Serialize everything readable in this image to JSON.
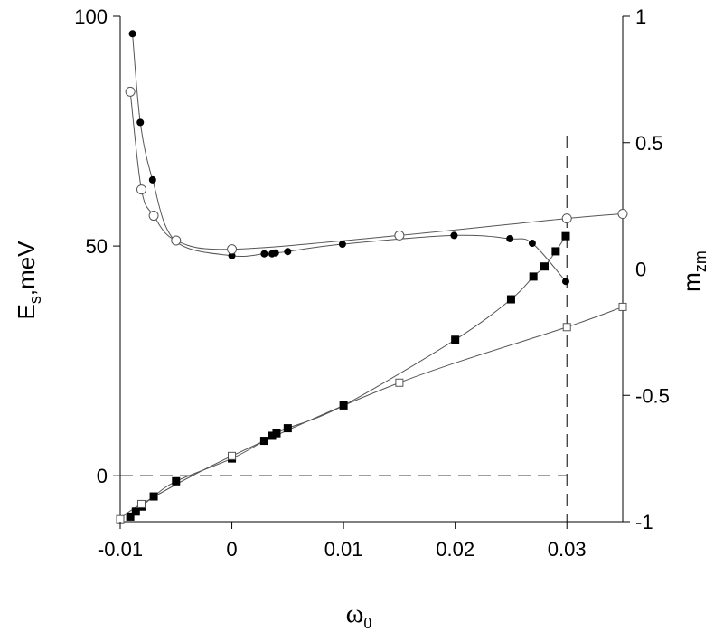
{
  "chart_data": {
    "type": "scatter",
    "xlabel": "ω0",
    "ylabel_left": "Es,meV",
    "ylabel_right": "mzm",
    "xlim": [
      -0.01,
      0.035
    ],
    "ylim_left": [
      -10,
      100
    ],
    "ylim_right": [
      -1,
      1
    ],
    "x_ticks": [
      "-0.01",
      "0",
      "0.01",
      "0.02",
      "0.03"
    ],
    "x_tick_values": [
      -0.01,
      0,
      0.01,
      0.02,
      0.03
    ],
    "y_left_ticks": [
      "0",
      "50",
      "100"
    ],
    "y_left_tick_values": [
      0,
      50,
      100
    ],
    "y_right_ticks": [
      "-1",
      "-0.5",
      "0",
      "0.5",
      "1"
    ],
    "y_right_tick_values": [
      -1,
      -0.5,
      0,
      0.5,
      1
    ],
    "reference_lines": {
      "horizontal_dashed_y_left": 0,
      "vertical_dashed_x": 0.03
    },
    "series": [
      {
        "marker": "filled-circle",
        "axis": "left",
        "x": [
          -0.0089,
          -0.0082,
          -0.0071,
          -0.0051,
          0.0,
          0.0029,
          0.0036,
          0.0039,
          0.005,
          0.0099,
          0.0199,
          0.0249,
          0.0269,
          0.0299
        ],
        "y": [
          96.2,
          76.9,
          64.4,
          51.2,
          47.9,
          48.3,
          48.3,
          48.5,
          48.8,
          50.4,
          52.3,
          51.6,
          50.6,
          42.3
        ]
      },
      {
        "marker": "open-circle",
        "axis": "left",
        "x": [
          -0.0091,
          -0.0081,
          -0.007,
          -0.005,
          0.0,
          0.015,
          0.03,
          0.035
        ],
        "y": [
          83.6,
          62.3,
          56.6,
          51.2,
          49.3,
          52.3,
          56.0,
          57.0
        ]
      },
      {
        "marker": "filled-square",
        "axis": "right",
        "x": [
          -0.0091,
          -0.0086,
          -0.0081,
          -0.007,
          -0.005,
          0.0,
          0.0029,
          0.0036,
          0.004,
          0.005,
          0.01,
          0.02,
          0.025,
          0.027,
          0.028,
          0.029,
          0.0299
        ],
        "y": [
          -0.98,
          -0.96,
          -0.94,
          -0.9,
          -0.84,
          -0.75,
          -0.68,
          -0.66,
          -0.65,
          -0.63,
          -0.54,
          -0.28,
          -0.12,
          -0.03,
          0.01,
          0.07,
          0.13
        ]
      },
      {
        "marker": "open-square",
        "axis": "right",
        "x": [
          -0.01,
          -0.0081,
          0.0,
          0.015,
          0.03,
          0.035
        ],
        "y": [
          -0.99,
          -0.93,
          -0.74,
          -0.45,
          -0.23,
          -0.15
        ]
      }
    ]
  }
}
